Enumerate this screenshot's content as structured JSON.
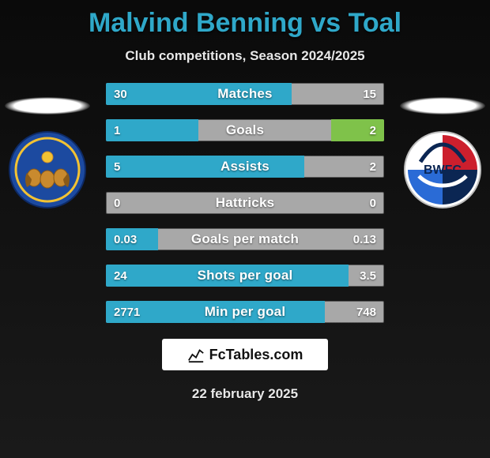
{
  "title": "Malvind Benning vs Toal",
  "subtitle": "Club competitions, Season 2024/2025",
  "date": "22 february 2025",
  "watermark": "FcTables.com",
  "colors": {
    "accent_left": "#2fa8c9",
    "accent_right": "#7fc24a",
    "bar_bg": "#a8a8a8",
    "title_color": "#2fa8c9"
  },
  "stats": [
    {
      "label": "Matches",
      "left_text": "30",
      "right_text": "15",
      "left_pct": 66.7,
      "right_pct": 0
    },
    {
      "label": "Goals",
      "left_text": "1",
      "right_text": "2",
      "left_pct": 33.3,
      "right_pct": 19.0
    },
    {
      "label": "Assists",
      "left_text": "5",
      "right_text": "2",
      "left_pct": 71.4,
      "right_pct": 0
    },
    {
      "label": "Hattricks",
      "left_text": "0",
      "right_text": "0",
      "left_pct": 0,
      "right_pct": 0
    },
    {
      "label": "Goals per match",
      "left_text": "0.03",
      "right_text": "0.13",
      "left_pct": 18.8,
      "right_pct": 0
    },
    {
      "label": "Shots per goal",
      "left_text": "24",
      "right_text": "3.5",
      "left_pct": 87.3,
      "right_pct": 0
    },
    {
      "label": "Min per goal",
      "left_text": "2771",
      "right_text": "748",
      "left_pct": 78.7,
      "right_pct": 0
    }
  ],
  "club_left": {
    "outer_ring": "#1c4aa0",
    "inner_ring": "#f2c233",
    "face": "#c98a2e",
    "mane": "#8a5a18"
  },
  "club_right": {
    "outer": "#ffffff",
    "navy": "#0b2653",
    "red": "#cc1f2d",
    "blue": "#2a6bd6"
  }
}
